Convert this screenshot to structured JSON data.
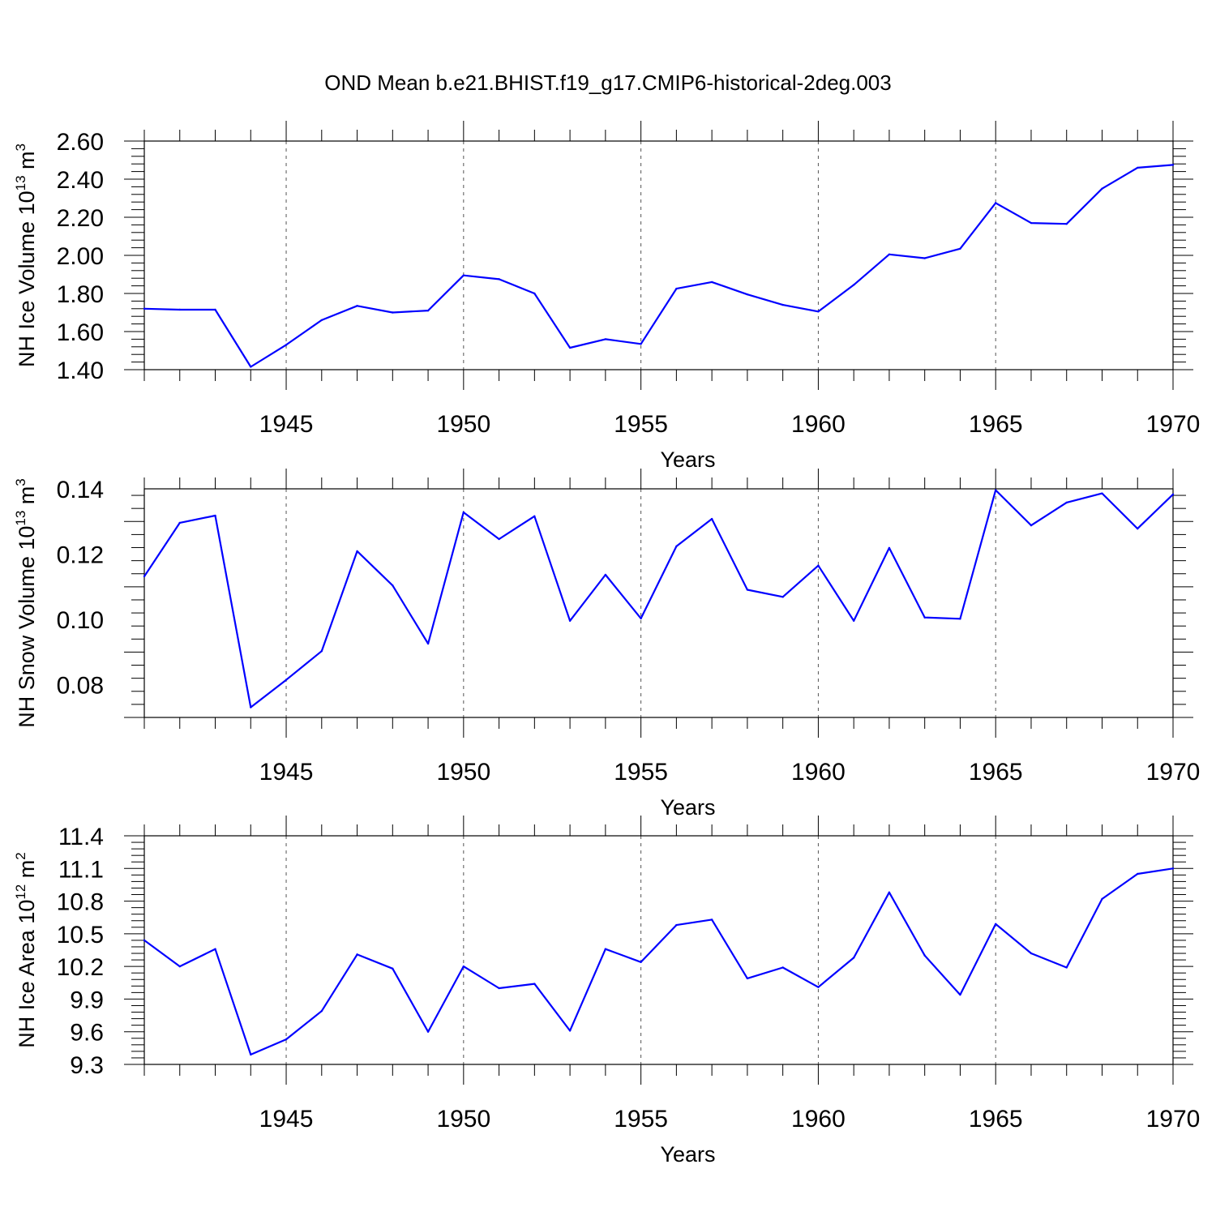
{
  "figure": {
    "title": "OND Mean b.e21.BHIST.f19_g17.CMIP6-historical-2deg.003"
  },
  "colors": {
    "series": "#0000ff",
    "axis": "#000000",
    "grid": "#555555",
    "background": "#ffffff"
  },
  "chart_data": [
    {
      "type": "line",
      "title": "OND Mean b.e21.BHIST.f19_g17.CMIP6-historical-2deg.003",
      "xlabel": "Years",
      "ylabel_main": "NH Ice Volume 10",
      "ylabel_exp": "13",
      "ylabel_unit": " m",
      "ylabel_unit_exp": "3",
      "xlim": [
        1941,
        1970
      ],
      "ylim": [
        1.4,
        2.6
      ],
      "xticks": [
        "1945",
        "1950",
        "1955",
        "1960",
        "1965",
        "1970"
      ],
      "yticks": [
        "1.40",
        "1.60",
        "1.80",
        "2.00",
        "2.20",
        "2.40",
        "2.60"
      ],
      "grid": "vertical dashed at major x ticks",
      "x": [
        1941,
        1942,
        1943,
        1944,
        1945,
        1946,
        1947,
        1948,
        1949,
        1950,
        1951,
        1952,
        1953,
        1954,
        1955,
        1956,
        1957,
        1958,
        1959,
        1960,
        1961,
        1962,
        1963,
        1964,
        1965,
        1966,
        1967,
        1968,
        1969,
        1970
      ],
      "series": [
        {
          "name": "NH Ice Volume",
          "values": [
            1.72,
            1.715,
            1.715,
            1.415,
            1.53,
            1.66,
            1.735,
            1.7,
            1.71,
            1.895,
            1.875,
            1.8,
            1.515,
            1.56,
            1.535,
            1.825,
            1.86,
            1.795,
            1.74,
            1.705,
            1.845,
            2.005,
            1.985,
            2.035,
            2.275,
            2.17,
            2.165,
            2.35,
            2.46,
            2.475
          ]
        }
      ]
    },
    {
      "type": "line",
      "xlabel": "Years",
      "ylabel_main": "NH Snow Volume 10",
      "ylabel_exp": "13",
      "ylabel_unit": " m",
      "ylabel_unit_exp": "3",
      "xlim": [
        1941,
        1970
      ],
      "ylim": [
        0.07,
        0.14
      ],
      "xticks": [
        "1945",
        "1950",
        "1955",
        "1960",
        "1965",
        "1970"
      ],
      "yticks": [
        "0.08",
        "0.10",
        "0.12",
        "0.14"
      ],
      "grid": "vertical dashed at major x ticks",
      "x": [
        1941,
        1942,
        1943,
        1944,
        1945,
        1946,
        1947,
        1948,
        1949,
        1950,
        1951,
        1952,
        1953,
        1954,
        1955,
        1956,
        1957,
        1958,
        1959,
        1960,
        1961,
        1962,
        1963,
        1964,
        1965,
        1966,
        1967,
        1968,
        1969,
        1970
      ],
      "series": [
        {
          "name": "NH Snow Volume",
          "values": [
            0.1132,
            0.1296,
            0.1318,
            0.0731,
            0.0815,
            0.0903,
            0.1209,
            0.1104,
            0.0926,
            0.1328,
            0.1246,
            0.1316,
            0.0996,
            0.1137,
            0.1003,
            0.1224,
            0.1308,
            0.1091,
            0.1069,
            0.1165,
            0.0996,
            0.1219,
            0.1006,
            0.1002,
            0.1396,
            0.1288,
            0.1358,
            0.1386,
            0.1278,
            0.1383
          ]
        }
      ]
    },
    {
      "type": "line",
      "xlabel": "Years",
      "ylabel_main": "NH Ice Area 10",
      "ylabel_exp": "12",
      "ylabel_unit": " m",
      "ylabel_unit_exp": "2",
      "xlim": [
        1941,
        1970
      ],
      "ylim": [
        9.3,
        11.4
      ],
      "xticks": [
        "1945",
        "1950",
        "1955",
        "1960",
        "1965",
        "1970"
      ],
      "yticks": [
        "9.3",
        "9.6",
        "9.9",
        "10.2",
        "10.5",
        "10.8",
        "11.1",
        "11.4"
      ],
      "grid": "vertical dashed at major x ticks",
      "x": [
        1941,
        1942,
        1943,
        1944,
        1945,
        1946,
        1947,
        1948,
        1949,
        1950,
        1951,
        1952,
        1953,
        1954,
        1955,
        1956,
        1957,
        1958,
        1959,
        1960,
        1961,
        1962,
        1963,
        1964,
        1965,
        1966,
        1967,
        1968,
        1969,
        1970
      ],
      "series": [
        {
          "name": "NH Ice Area",
          "values": [
            10.44,
            10.2,
            10.36,
            9.39,
            9.53,
            9.79,
            10.31,
            10.18,
            9.6,
            10.2,
            10.0,
            10.04,
            9.61,
            10.36,
            10.24,
            10.58,
            10.63,
            10.09,
            10.19,
            10.01,
            10.28,
            10.88,
            10.3,
            9.94,
            10.59,
            10.32,
            10.19,
            10.82,
            11.05,
            11.1
          ]
        }
      ]
    }
  ]
}
